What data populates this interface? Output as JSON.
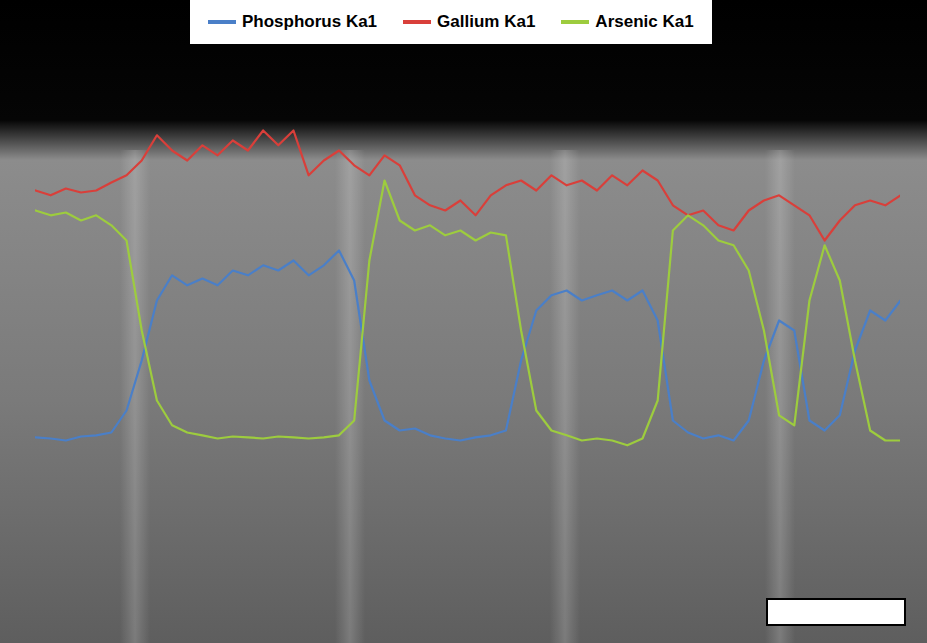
{
  "chart_data": {
    "type": "line",
    "x": [
      0,
      1,
      2,
      3,
      4,
      5,
      6,
      7,
      8,
      9,
      10,
      11,
      12,
      13,
      14,
      15,
      16,
      17,
      18,
      19,
      20,
      21,
      22,
      23,
      24,
      25,
      26,
      27,
      28,
      29,
      30,
      31,
      32,
      33,
      34,
      35,
      36,
      37,
      38,
      39,
      40,
      41,
      42,
      43,
      44,
      45,
      46,
      47,
      48,
      49,
      50,
      51,
      52,
      53,
      54,
      55,
      56,
      57
    ],
    "xlim": [
      0,
      57
    ],
    "ylim": [
      0,
      100
    ],
    "tick_labels": false,
    "grid": false,
    "legend": "top",
    "series": [
      {
        "name": "Phosphorus Ka1",
        "color": "#4a7fc8",
        "values": [
          15.8,
          15.5,
          15,
          16,
          16.3,
          17,
          22.5,
          35,
          50,
          56.3,
          53.8,
          55.5,
          53.8,
          57.5,
          56.3,
          58.8,
          57.5,
          60,
          56.3,
          58.8,
          62.5,
          55,
          30,
          20,
          17.5,
          18,
          16.3,
          15.5,
          15,
          15.8,
          16.3,
          17.5,
          35,
          47.5,
          51.3,
          52.5,
          50,
          51.3,
          52.5,
          50,
          52.5,
          45,
          20,
          17,
          15.5,
          16.3,
          15,
          20,
          35,
          45,
          42.5,
          20,
          17.5,
          21.3,
          37.5,
          47.5,
          45,
          50
        ]
      },
      {
        "name": "Gallium Ka1",
        "color": "#d93f3a",
        "values": [
          77.5,
          76.3,
          78,
          77,
          77.5,
          79.5,
          81.3,
          85,
          91.3,
          87.5,
          85,
          88.8,
          86.3,
          90,
          87.5,
          92.5,
          88.8,
          92.5,
          81.3,
          85,
          87.5,
          83.8,
          81.3,
          86.3,
          83.8,
          76.3,
          73.8,
          72.5,
          75,
          71.3,
          76.3,
          78.8,
          80,
          77.5,
          81.3,
          78.8,
          80,
          77.5,
          81.3,
          78.8,
          82.5,
          80,
          73.8,
          71.3,
          72.5,
          68.8,
          67.5,
          72.5,
          75,
          76.3,
          73.8,
          71.3,
          65,
          70,
          73.8,
          75,
          73.8,
          76.3
        ]
      },
      {
        "name": "Arsenic Ka1",
        "color": "#9dcc3e",
        "values": [
          72.5,
          71.3,
          72,
          70,
          71.3,
          68.8,
          65,
          42.5,
          25,
          18.8,
          17,
          16.3,
          15.5,
          16,
          15.8,
          15.5,
          16,
          15.8,
          15.5,
          15.8,
          16.3,
          20,
          60,
          80,
          70,
          67.5,
          68.8,
          66.3,
          67.5,
          65,
          67,
          66.3,
          42.5,
          22.5,
          17.5,
          16.3,
          15,
          15.5,
          15,
          13.8,
          15.5,
          25,
          67.5,
          71.3,
          68.8,
          65,
          63.8,
          57.5,
          42.5,
          21.3,
          18.8,
          50,
          63.8,
          55,
          35,
          17.5,
          15,
          15
        ]
      }
    ]
  }
}
